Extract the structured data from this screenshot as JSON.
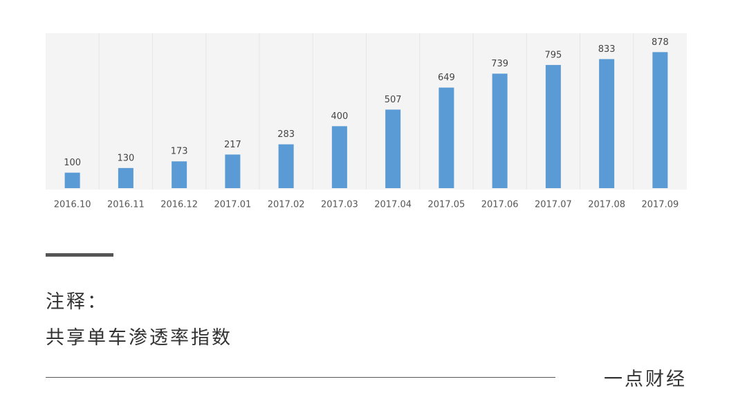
{
  "chart_data": {
    "type": "bar",
    "categories": [
      "2016.10",
      "2016.11",
      "2016.12",
      "2017.01",
      "2017.02",
      "2017.03",
      "2017.04",
      "2017.05",
      "2017.06",
      "2017.07",
      "2017.08",
      "2017.09"
    ],
    "values": [
      100,
      130,
      173,
      217,
      283,
      400,
      507,
      649,
      739,
      795,
      833,
      878
    ],
    "color": "#5b9bd5",
    "ylim": [
      0,
      1000
    ]
  },
  "note": {
    "label": "注释：",
    "text": "共享单车渗透率指数"
  },
  "source": "一点财经"
}
